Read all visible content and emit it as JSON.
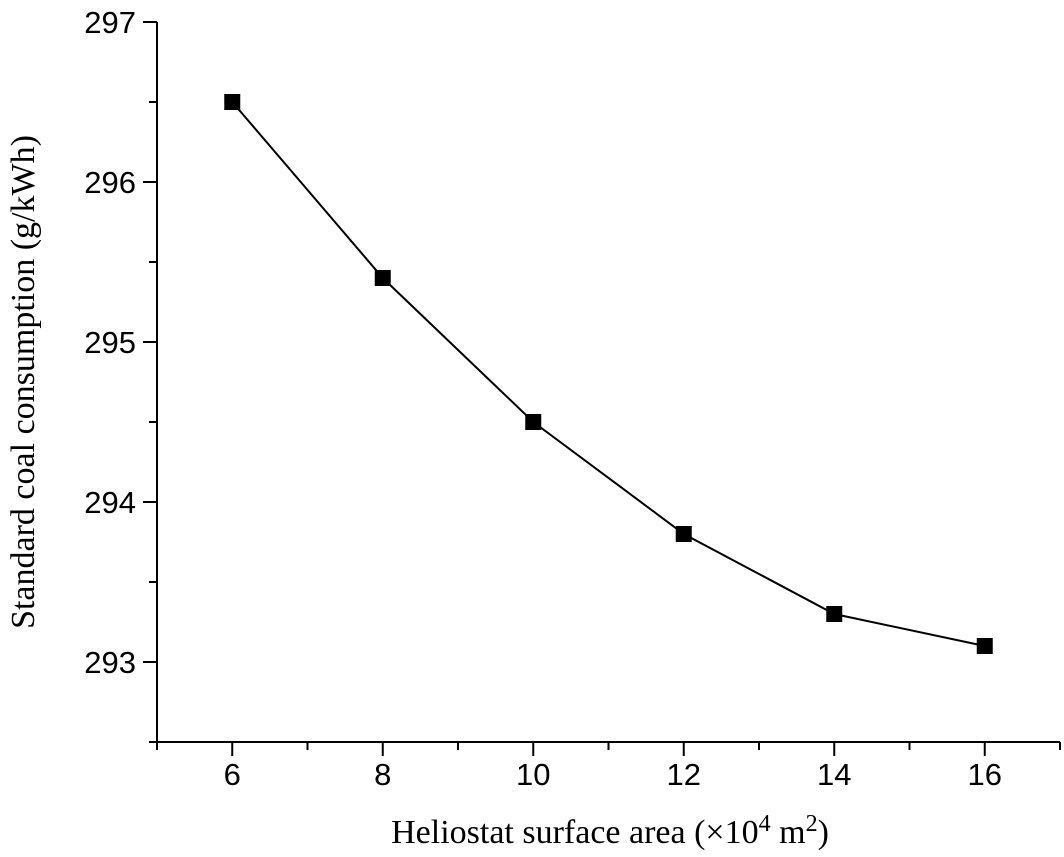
{
  "chart_data": {
    "type": "line",
    "title": "",
    "xlabel": "Heliostat surface area (×10⁴ m²)",
    "xlabel_parts": {
      "main": "Heliostat surface area (×10",
      "exp1": "4",
      "mid": " m",
      "exp2": "2",
      "end": ")"
    },
    "ylabel": "Standard coal consumption (g/kWh)",
    "xlim": [
      5,
      17
    ],
    "ylim": [
      292.5,
      297
    ],
    "x_ticks": [
      6,
      8,
      10,
      12,
      14,
      16
    ],
    "x_minor_ticks": [
      5,
      7,
      9,
      11,
      13,
      15,
      17
    ],
    "y_ticks": [
      293,
      294,
      295,
      296,
      297
    ],
    "y_minor_ticks": [
      292.5,
      293.5,
      294.5,
      295.5,
      296.5
    ],
    "grid": false,
    "marker": "square",
    "color": "#000000",
    "series": [
      {
        "x": [
          6,
          8,
          10,
          12,
          14,
          16
        ],
        "values": [
          296.5,
          295.4,
          294.5,
          293.8,
          293.3,
          293.1
        ]
      }
    ]
  }
}
